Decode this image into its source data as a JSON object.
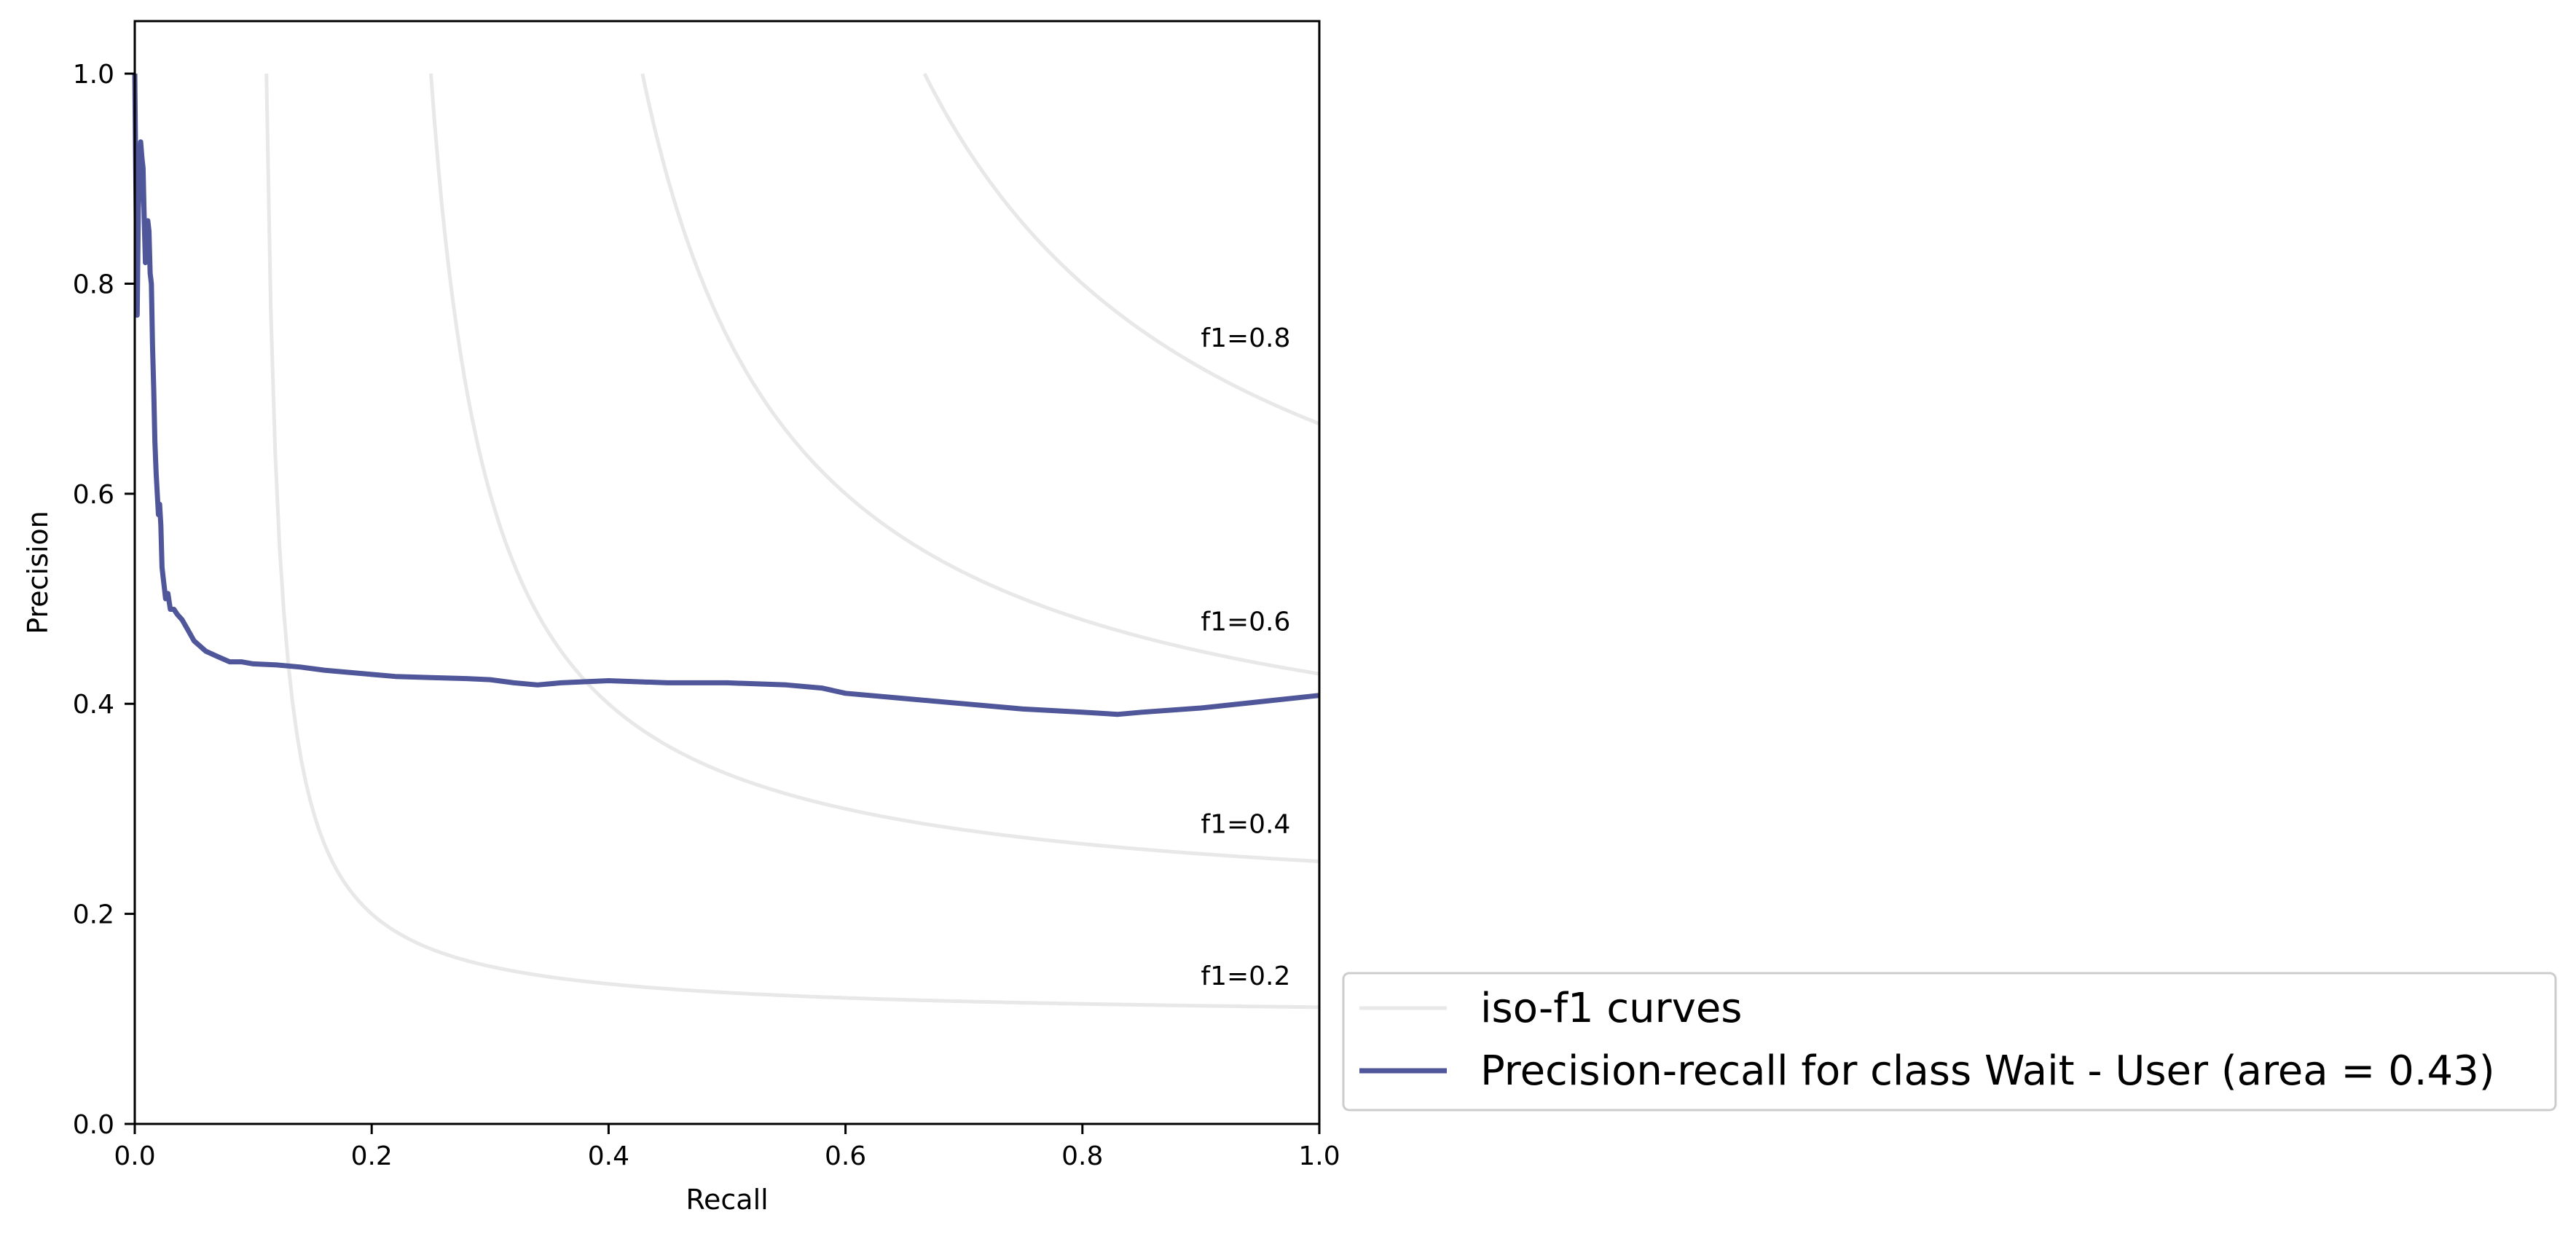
{
  "chart_data": {
    "type": "line",
    "title": "",
    "xlabel": "Recall",
    "ylabel": "Precision",
    "xlim": [
      0.0,
      1.0
    ],
    "ylim": [
      0.0,
      1.05
    ],
    "x_ticks": [
      "0.0",
      "0.2",
      "0.4",
      "0.6",
      "0.8",
      "1.0"
    ],
    "y_ticks": [
      "0.0",
      "0.2",
      "0.4",
      "0.6",
      "0.8",
      "1.0"
    ],
    "grid": false,
    "legend_position": "outside lower-right",
    "iso_f1": {
      "legend_label": "iso-f1 curves",
      "color": "#e8e8e8",
      "levels": [
        0.2,
        0.4,
        0.6,
        0.8
      ],
      "labels": [
        "f1=0.2",
        "f1=0.4",
        "f1=0.6",
        "f1=0.8"
      ]
    },
    "series": [
      {
        "name": "Precision-recall for class Wait - User (area = 0.43)",
        "color": "#4f5699",
        "x": [
          0.0,
          0.002,
          0.003,
          0.004,
          0.005,
          0.006,
          0.007,
          0.008,
          0.009,
          0.01,
          0.011,
          0.012,
          0.013,
          0.014,
          0.015,
          0.016,
          0.017,
          0.018,
          0.019,
          0.02,
          0.021,
          0.022,
          0.023,
          0.024,
          0.025,
          0.026,
          0.028,
          0.03,
          0.033,
          0.036,
          0.04,
          0.045,
          0.05,
          0.055,
          0.06,
          0.07,
          0.08,
          0.09,
          0.1,
          0.12,
          0.14,
          0.16,
          0.18,
          0.2,
          0.22,
          0.25,
          0.28,
          0.3,
          0.32,
          0.34,
          0.36,
          0.4,
          0.45,
          0.5,
          0.55,
          0.58,
          0.6,
          0.65,
          0.7,
          0.75,
          0.8,
          0.83,
          0.85,
          0.9,
          0.95,
          1.0
        ],
        "y": [
          1.0,
          0.77,
          0.87,
          0.9,
          0.935,
          0.92,
          0.91,
          0.86,
          0.82,
          0.83,
          0.86,
          0.85,
          0.81,
          0.8,
          0.74,
          0.7,
          0.65,
          0.62,
          0.6,
          0.58,
          0.59,
          0.57,
          0.53,
          0.52,
          0.51,
          0.5,
          0.505,
          0.49,
          0.49,
          0.485,
          0.48,
          0.47,
          0.46,
          0.455,
          0.45,
          0.445,
          0.44,
          0.44,
          0.438,
          0.437,
          0.435,
          0.432,
          0.43,
          0.428,
          0.426,
          0.425,
          0.424,
          0.423,
          0.42,
          0.418,
          0.42,
          0.422,
          0.42,
          0.42,
          0.418,
          0.415,
          0.41,
          0.405,
          0.4,
          0.395,
          0.392,
          0.39,
          0.392,
          0.396,
          0.402,
          0.408
        ]
      }
    ]
  }
}
